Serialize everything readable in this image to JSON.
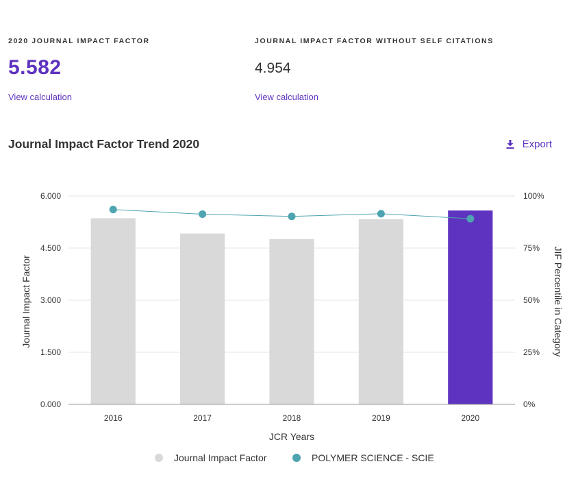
{
  "metrics": {
    "jif": {
      "label": "2020 JOURNAL IMPACT FACTOR",
      "value": "5.582",
      "link": "View calculation"
    },
    "jif_no_self": {
      "label": "JOURNAL IMPACT FACTOR WITHOUT SELF CITATIONS",
      "value": "4.954",
      "link": "View calculation"
    }
  },
  "section": {
    "title": "Journal Impact Factor Trend 2020",
    "export_label": "Export"
  },
  "colors": {
    "accent": "#5e33bf",
    "bar_default": "#d9d9d9",
    "bar_highlight": "#5e33bf",
    "line": "#4ea4b1",
    "grid": "#e6e6e6",
    "axis": "#999999"
  },
  "chart_data": {
    "type": "bar",
    "title": "Journal Impact Factor Trend 2020",
    "categories": [
      "2016",
      "2017",
      "2018",
      "2019",
      "2020"
    ],
    "xlabel": "JCR Years",
    "ylabel": "Journal Impact Factor",
    "y2label": "JIF Percentile in Category",
    "ylim": [
      0,
      6
    ],
    "y2lim": [
      0,
      100
    ],
    "yticks": [
      "0.000",
      "1.500",
      "3.000",
      "4.500",
      "6.000"
    ],
    "y2ticks": [
      "0%",
      "25%",
      "50%",
      "75%",
      "100%"
    ],
    "highlight_category": "2020",
    "series": [
      {
        "name": "Journal Impact Factor",
        "type": "bar",
        "axis": "left",
        "values": [
          5.36,
          4.92,
          4.76,
          5.33,
          5.582
        ]
      },
      {
        "name": "POLYMER SCIENCE - SCIE",
        "type": "line",
        "axis": "right",
        "values": [
          93.5,
          91.3,
          90.2,
          91.5,
          89.1
        ]
      }
    ],
    "legend": [
      "Journal Impact Factor",
      "POLYMER SCIENCE - SCIE"
    ],
    "legend_position": "bottom",
    "grid": true
  }
}
